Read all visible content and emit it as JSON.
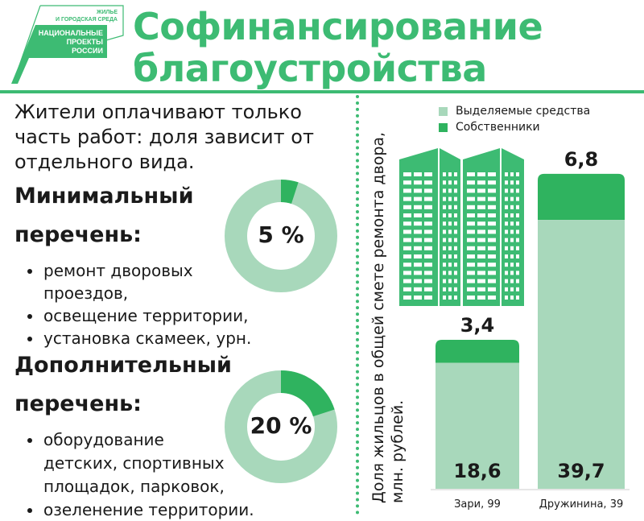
{
  "logo": {
    "line1": "ЖИЛЬЕ",
    "line2": "И ГОРОДСКАЯ СРЕДА",
    "line3": "НАЦИОНАЛЬНЫЕ",
    "line4": "ПРОЕКТЫ",
    "line5": "РОССИИ"
  },
  "header": {
    "title_line1": "Софинансирование",
    "title_line2": "благоустройства"
  },
  "intro": "Жители оплачивают только часть работ: доля зависит от отдельного вида.",
  "minimal": {
    "heading_line1": "Минимальный",
    "heading_line2": "перечень:",
    "percent_label": "5 %",
    "percent": 5,
    "items": [
      "ремонт дворовых проездов,",
      "освещение территории,",
      "установка скамеек, урн."
    ]
  },
  "additional": {
    "heading_line1": "Дополнительный",
    "heading_line2": "перечень:",
    "percent_label": "20 %",
    "percent": 20,
    "items": [
      "оборудование детских, спортивных площадок, парковок,",
      "озеленение территории."
    ]
  },
  "colors": {
    "accent": "#3dbb73",
    "dark": "#2fb35f",
    "light": "#a8d8bb"
  },
  "chart_data": {
    "type": "bar",
    "stacked": true,
    "ylabel": "Доля жильцов в общей смете ремонта двора, млн. рублей.",
    "categories": [
      "Зари, 99",
      "Дружинина, 39"
    ],
    "series": [
      {
        "name": "Выделяемые средства",
        "values": [
          18.6,
          39.7
        ],
        "labels": [
          "18,6",
          "39,7"
        ],
        "color": "#a8d8bb"
      },
      {
        "name": "Собственники",
        "values": [
          3.4,
          6.8
        ],
        "labels": [
          "3,4",
          "6,8"
        ],
        "color": "#2fb35f"
      }
    ],
    "legend": "top"
  }
}
